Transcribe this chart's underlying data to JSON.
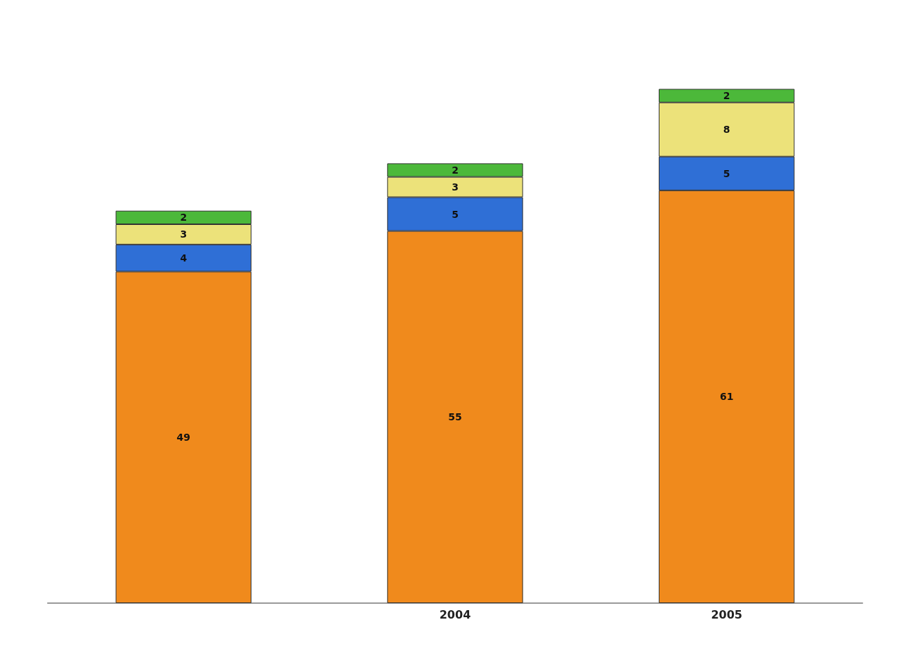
{
  "chart_data": {
    "type": "bar",
    "categories": [
      null,
      "2004",
      "2005"
    ],
    "stacked": true,
    "data_labels": true,
    "tick_labels": "x",
    "series": [
      {
        "color": "#f08a1c",
        "values": [
          49,
          55,
          61
        ]
      },
      {
        "color": "#2f6fd6",
        "values": [
          4,
          5,
          5
        ]
      },
      {
        "color": "#ece27a",
        "values": [
          3,
          3,
          8
        ]
      },
      {
        "color": "#4cb83a",
        "values": [
          2,
          2,
          2
        ]
      }
    ]
  }
}
